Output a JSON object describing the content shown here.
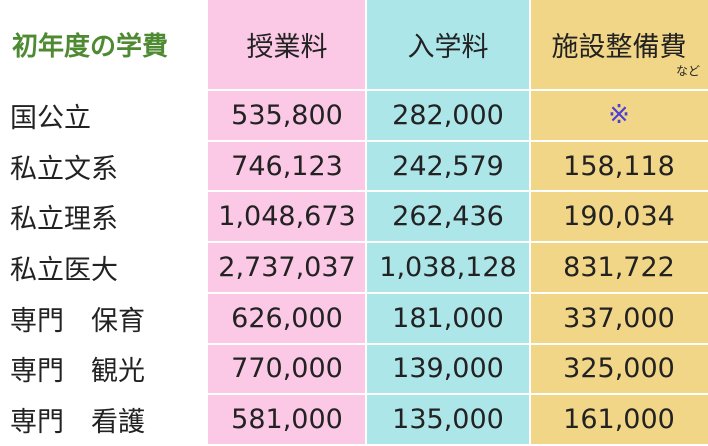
{
  "header": {
    "corner": "初年度の学費",
    "col1": "授業料",
    "col2": "入学料",
    "col3": "施設整備費",
    "col3_note": "など"
  },
  "rows": [
    {
      "label": "国公立",
      "tuition": "535,800",
      "admission": "282,000",
      "facilities": "※"
    },
    {
      "label": "私立文系",
      "tuition": "746,123",
      "admission": "242,579",
      "facilities": "158,118"
    },
    {
      "label": "私立理系",
      "tuition": "1,048,673",
      "admission": "262,436",
      "facilities": "190,034"
    },
    {
      "label": "私立医大",
      "tuition": "2,737,037",
      "admission": "1,038,128",
      "facilities": "831,722"
    },
    {
      "label": "専門　保育",
      "tuition": "626,000",
      "admission": "181,000",
      "facilities": "337,000"
    },
    {
      "label": "専門　観光",
      "tuition": "770,000",
      "admission": "139,000",
      "facilities": "325,000"
    },
    {
      "label": "専門　看護",
      "tuition": "581,000",
      "admission": "135,000",
      "facilities": "161,000"
    }
  ],
  "colors": {
    "header_text": "#4e8a32",
    "tuition_column": "#fbc9e6",
    "admission_column": "#ade6e9",
    "facilities_column": "#f2d687",
    "mark": "#4a3fd6"
  }
}
